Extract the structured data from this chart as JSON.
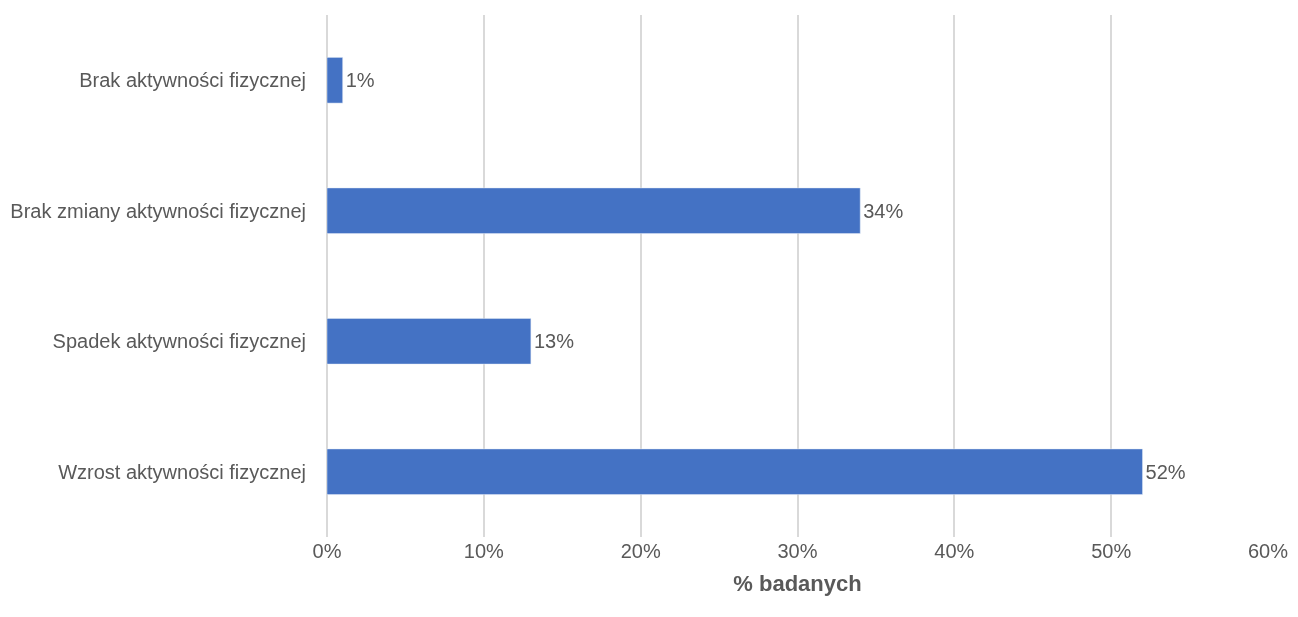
{
  "chart_data": {
    "type": "bar",
    "orientation": "horizontal",
    "xlabel": "% badanych",
    "categories": [
      "Brak aktywności fizycznej",
      "Brak zmiany aktywności fizycznej",
      "Spadek aktywności fizycznej",
      "Wzrost aktywności fizycznej"
    ],
    "values": [
      1,
      34,
      13,
      52
    ],
    "value_labels": [
      "1%",
      "34%",
      "13%",
      "52%"
    ],
    "color": "#4472c4",
    "xlim": [
      0,
      60
    ],
    "xticks": [
      {
        "value": 0,
        "label": "0%"
      },
      {
        "value": 10,
        "label": "10%"
      },
      {
        "value": 20,
        "label": "20%"
      },
      {
        "value": 30,
        "label": "30%"
      },
      {
        "value": 40,
        "label": "40%"
      },
      {
        "value": 50,
        "label": "50%"
      },
      {
        "value": 60,
        "label": "60%"
      }
    ],
    "grid": "x"
  }
}
